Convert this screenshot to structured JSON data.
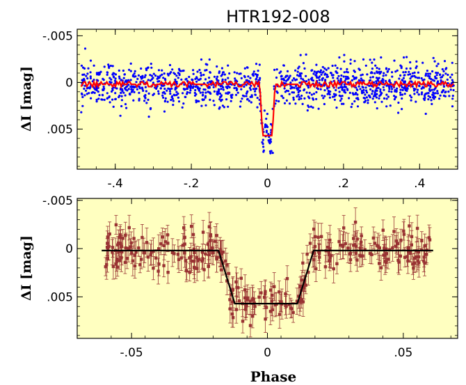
{
  "chart_data": [
    {
      "type": "scatter",
      "title": "HTR192-008",
      "ylabel": "ΔI  [mag]",
      "xlabel": "",
      "xlim": [
        -0.5,
        0.5
      ],
      "ylim": [
        0.0093,
        -0.0057
      ],
      "y_inverted": true,
      "x_ticks": [
        -0.4,
        -0.2,
        0,
        0.2,
        0.4
      ],
      "x_tick_labels": [
        "-.4",
        "-.2",
        "0",
        ".2",
        ".4"
      ],
      "y_ticks": [
        -0.005,
        0,
        0.005
      ],
      "y_tick_labels": [
        "-.005",
        "0",
        ".005"
      ],
      "background": "#ffffc0",
      "series": [
        {
          "kind": "points",
          "color": "#0000ff",
          "x_range": [
            -0.49,
            0.49
          ],
          "baseline": 0.0002,
          "scatter_sd": 0.0011,
          "n_points": 1400
        },
        {
          "kind": "model-line",
          "color": "#ff0000",
          "x": [
            -0.49,
            -0.02,
            -0.013,
            0.013,
            0.02,
            0.49
          ],
          "y": [
            0.0002,
            0.0002,
            0.0057,
            0.0057,
            0.0002,
            0.0002
          ]
        }
      ]
    },
    {
      "type": "scatter",
      "title": "",
      "ylabel": "ΔI  [mag]",
      "xlabel": "Phase",
      "xlim": [
        -0.07,
        0.07
      ],
      "ylim": [
        0.0093,
        -0.0052
      ],
      "y_inverted": true,
      "x_ticks": [
        -0.05,
        0,
        0.05
      ],
      "x_tick_labels": [
        "-.05",
        "0",
        ".05"
      ],
      "y_ticks": [
        -0.005,
        0,
        0.005
      ],
      "y_tick_labels": [
        "-.005",
        "0",
        ".005"
      ],
      "background": "#ffffc0",
      "series": [
        {
          "kind": "binned-points-with-errors",
          "color": "#993333",
          "x_range": [
            -0.06,
            0.06
          ],
          "scatter_sd": 0.0011,
          "error_bar": 0.0012,
          "n_points": 320
        },
        {
          "kind": "model-line",
          "color": "#000000",
          "x": [
            -0.061,
            -0.018,
            -0.012,
            0.011,
            0.017,
            0.061
          ],
          "y": [
            0.0002,
            0.0002,
            0.0057,
            0.0057,
            0.0002,
            0.0002
          ]
        }
      ]
    }
  ]
}
